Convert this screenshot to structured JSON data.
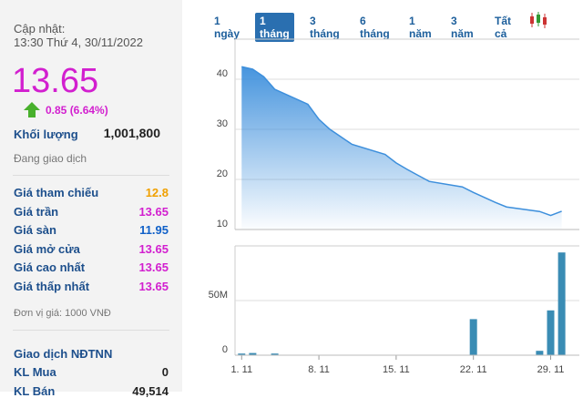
{
  "panel": {
    "update_label": "Cập nhật:",
    "update_time": "13:30 Thứ 4, 30/11/2022",
    "price": "13.65",
    "change": "0.85 (6.64%)",
    "volume_label": "Khối lượng",
    "volume": "1,001,800",
    "status": "Đang giao dịch",
    "rows": [
      [
        "Giá tham chiếu",
        "12.8"
      ],
      [
        "Giá trần",
        "13.65"
      ],
      [
        "Giá sàn",
        "11.95"
      ],
      [
        "Giá mở cửa",
        "13.65"
      ],
      [
        "Giá cao nhất",
        "13.65"
      ],
      [
        "Giá thấp nhất",
        "13.65"
      ]
    ],
    "unit_note": "Đơn vị giá: 1000 VNĐ",
    "foreign_title": "Giao dịch NĐTNN",
    "foreign_rows": [
      [
        "KL Mua",
        "0"
      ],
      [
        "KL Bán",
        "49,514"
      ]
    ]
  },
  "range_buttons": [
    "1 ngày",
    "1 tháng",
    "3 tháng",
    "6 tháng",
    "1 năm",
    "3 năm",
    "Tất cả"
  ],
  "chart_data": [
    {
      "type": "area",
      "color": "#3d8fdc",
      "x": [
        1,
        2,
        3,
        4,
        7,
        8,
        9,
        10,
        11,
        14,
        15,
        16,
        17,
        18,
        21,
        22,
        23,
        24,
        25,
        28,
        29,
        30
      ],
      "values": [
        42.5,
        42,
        40.5,
        38,
        35,
        32,
        30,
        28.5,
        27,
        25,
        23.3,
        22,
        20.8,
        19.6,
        18.5,
        17.4,
        16.4,
        15.4,
        14.5,
        13.6,
        12.8,
        13.65
      ],
      "xlim": [
        0.4,
        31.6
      ],
      "ylim": [
        10,
        48
      ],
      "yticks": [
        10,
        20,
        30,
        40
      ],
      "grid": true
    },
    {
      "type": "bar",
      "color": "#3a8cb4",
      "x": [
        1,
        2,
        4,
        22,
        28,
        29,
        30
      ],
      "values": [
        1500000,
        2000000,
        1500000,
        33000000,
        4000000,
        41000000,
        94000000
      ],
      "xlim": [
        0.4,
        31.6
      ],
      "ylim": [
        0,
        100000000
      ],
      "yticks": [
        0,
        {
          "value": 50000000,
          "label": "50M"
        }
      ],
      "xticks": [
        {
          "value": 1,
          "label": "1. 11"
        },
        {
          "value": 8,
          "label": "8. 11"
        },
        {
          "value": 15,
          "label": "15. 11"
        },
        {
          "value": 22,
          "label": "22. 11"
        },
        {
          "value": 29,
          "label": "29. 11"
        }
      ],
      "grid": true
    }
  ]
}
